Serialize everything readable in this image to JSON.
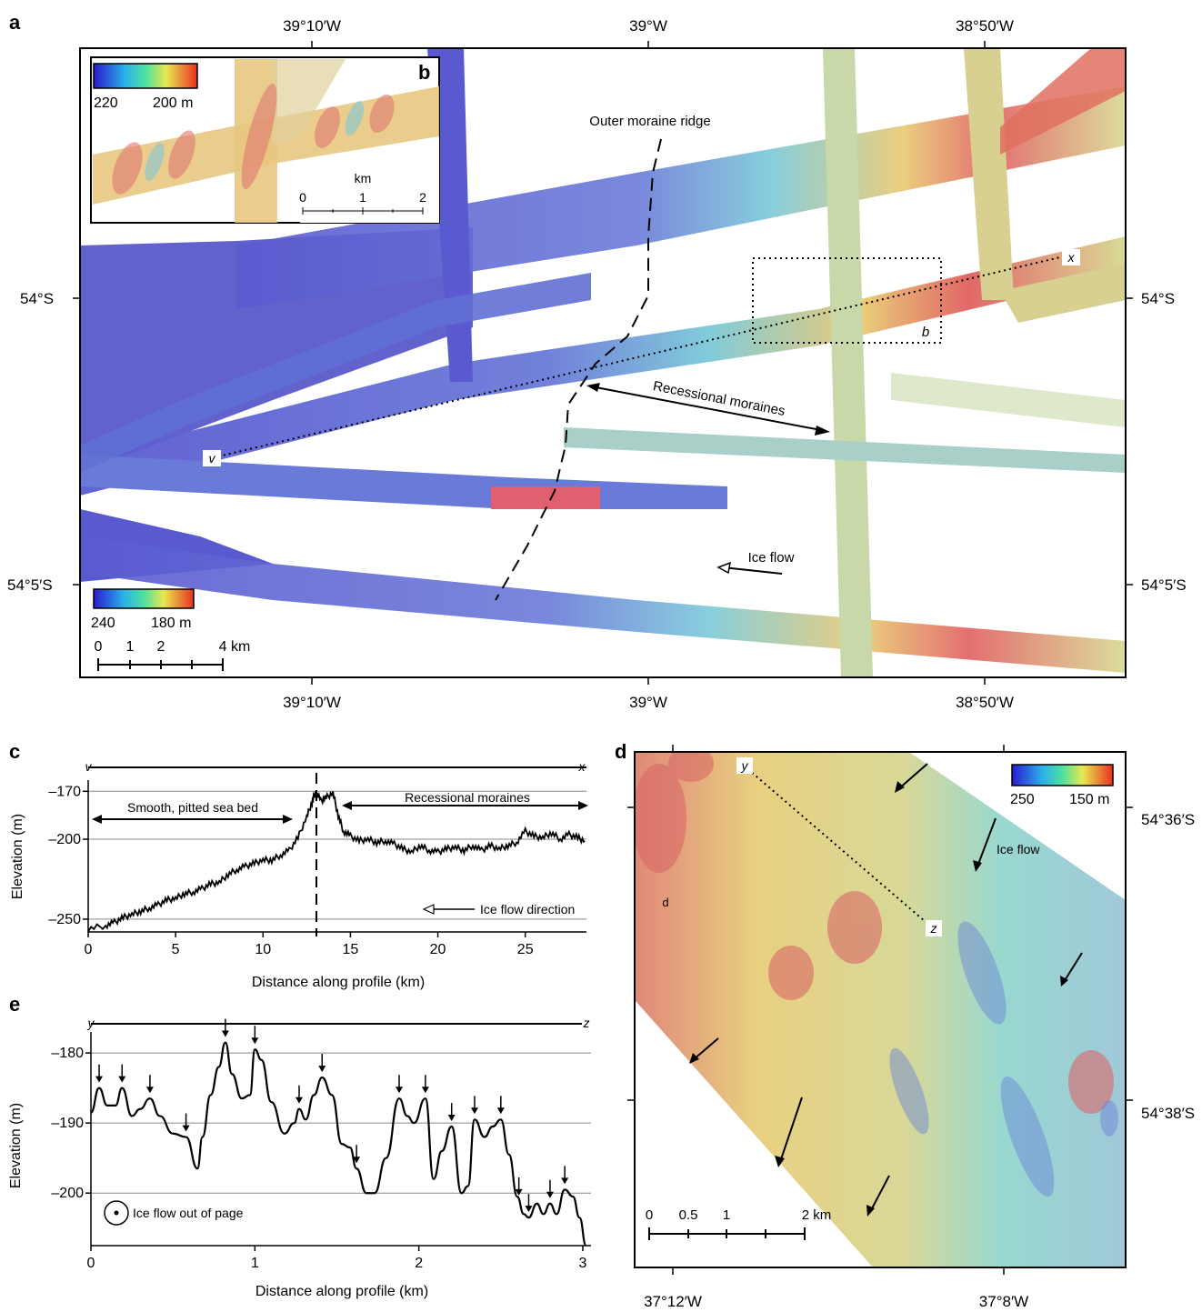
{
  "panels": {
    "a": "a",
    "b": "b",
    "c": "c",
    "d": "d",
    "e": "e"
  },
  "panel_a": {
    "lon_labels": [
      "39°10′W",
      "39°W",
      "38°50′W"
    ],
    "lat_labels": [
      "54°S",
      "54°5′S"
    ],
    "colorbar": {
      "min_label": "240",
      "max_label": "180 m",
      "colors": [
        "#1a1ac8",
        "#3cb4e6",
        "#e6e650",
        "#e63c32"
      ]
    },
    "scalebar": {
      "ticks": [
        "0",
        "1",
        "2",
        "4 km"
      ]
    },
    "annotations": {
      "outer_moraine": "Outer moraine ridge",
      "recessional": "Recessional moraines",
      "ice_flow": "Ice flow",
      "profile_start": "v",
      "profile_end": "x",
      "inset_box": "b"
    }
  },
  "panel_b": {
    "colorbar": {
      "min_label": "220",
      "max_label": "200 m"
    },
    "scalebar": {
      "unit": "km",
      "ticks": [
        "0",
        "1",
        "2"
      ]
    }
  },
  "panel_d": {
    "lon_labels": [
      "37°12′W",
      "37°8′W"
    ],
    "lat_labels": [
      "54°36′S",
      "54°38′S"
    ],
    "colorbar": {
      "min_label": "250",
      "max_label": "150 m"
    },
    "scalebar": {
      "ticks": [
        "0",
        "0.5",
        "1",
        "2 km"
      ]
    },
    "annotations": {
      "ice_flow": "Ice flow",
      "label_d": "d",
      "profile_start": "y",
      "profile_end": "z"
    }
  },
  "chart_data": [
    {
      "type": "line",
      "panel": "c",
      "xlabel": "Distance along profile (km)",
      "ylabel": "Elevation (m)",
      "xlim": [
        0,
        28.5
      ],
      "ylim": [
        -258,
        -163
      ],
      "xticks": [
        "0",
        "5",
        "10",
        "15",
        "20",
        "25"
      ],
      "yticks": [
        "-170",
        "-200",
        "-250"
      ],
      "profile_labels": {
        "start": "v",
        "end": "x"
      },
      "annotations": {
        "smooth": "Smooth, pitted sea bed",
        "recessional": "Recessional moraines",
        "ice_flow": "Ice flow direction"
      },
      "series": [
        {
          "x": [
            0,
            1,
            1.5,
            2,
            2.5,
            3,
            3.5,
            4,
            4.5,
            5,
            5.5,
            6,
            6.5,
            7,
            7.5,
            8,
            8.5,
            9,
            9.5,
            10,
            10.5,
            11,
            11.5,
            12,
            12.5,
            12.8,
            13,
            13.3,
            13.6,
            14,
            14.3,
            14.6,
            15,
            15.5,
            16,
            16.5,
            17,
            17.5,
            18,
            18.5,
            19,
            19.5,
            20,
            20.5,
            21,
            21.5,
            22,
            22.5,
            23,
            23.5,
            24,
            24.5,
            25,
            25.5,
            26,
            26.5,
            27,
            27.5,
            28,
            28.4
          ],
          "y": [
            -256,
            -254,
            -252,
            -249,
            -247,
            -245,
            -243,
            -241,
            -238,
            -237,
            -234,
            -233,
            -231,
            -228,
            -227,
            -222,
            -219,
            -217,
            -215,
            -213,
            -213,
            -210,
            -207,
            -199,
            -186,
            -177,
            -170,
            -176,
            -174,
            -171,
            -185,
            -195,
            -198,
            -201,
            -200,
            -202,
            -201,
            -203,
            -206,
            -208,
            -204,
            -207,
            -208,
            -206,
            -205,
            -207,
            -204,
            -207,
            -204,
            -206,
            -204,
            -202,
            -195,
            -198,
            -199,
            -196,
            -200,
            -197,
            -199,
            -201
          ]
        }
      ]
    },
    {
      "type": "line",
      "panel": "e",
      "xlabel": "Distance along profile (km)",
      "ylabel": "Elevation (m)",
      "xlim": [
        0,
        3.05
      ],
      "ylim": [
        -207.5,
        -177
      ],
      "xticks": [
        "0",
        "1",
        "2",
        "3"
      ],
      "yticks": [
        "-180",
        "-190",
        "-200"
      ],
      "profile_labels": {
        "start": "y",
        "end": "z"
      },
      "annotations": {
        "ice_flow": "Ice flow out of page"
      },
      "arrow_positions_km": [
        0.05,
        0.19,
        0.36,
        0.58,
        0.82,
        1.0,
        1.27,
        1.41,
        1.62,
        1.88,
        2.04,
        2.2,
        2.34,
        2.5,
        2.61,
        2.67,
        2.8,
        2.89
      ],
      "series": [
        {
          "x": [
            0,
            0.05,
            0.1,
            0.15,
            0.19,
            0.25,
            0.3,
            0.36,
            0.42,
            0.5,
            0.58,
            0.65,
            0.68,
            0.73,
            0.78,
            0.82,
            0.86,
            0.92,
            0.97,
            1.0,
            1.04,
            1.1,
            1.18,
            1.24,
            1.27,
            1.31,
            1.36,
            1.41,
            1.47,
            1.53,
            1.58,
            1.62,
            1.68,
            1.73,
            1.8,
            1.88,
            1.93,
            1.97,
            2.04,
            2.09,
            2.14,
            2.2,
            2.26,
            2.3,
            2.34,
            2.4,
            2.45,
            2.5,
            2.55,
            2.6,
            2.64,
            2.67,
            2.72,
            2.76,
            2.8,
            2.84,
            2.89,
            2.94,
            2.98,
            3.02
          ],
          "y": [
            -188.5,
            -185,
            -187.5,
            -187.5,
            -185,
            -189,
            -188,
            -186.5,
            -189,
            -191.5,
            -192,
            -196.5,
            -192,
            -186,
            -182,
            -178.5,
            -183,
            -186.5,
            -186,
            -179.5,
            -181,
            -187,
            -191.5,
            -190,
            -188,
            -189.5,
            -186,
            -183.5,
            -186,
            -193,
            -193.5,
            -196.5,
            -200,
            -200,
            -195,
            -186.5,
            -189,
            -190,
            -186.5,
            -198,
            -194,
            -190.5,
            -200,
            -199,
            -189.5,
            -192,
            -190.5,
            -189.5,
            -194.5,
            -200.5,
            -203,
            -203.5,
            -201.5,
            -203,
            -201.5,
            -203,
            -199.5,
            -200.5,
            -203.5,
            -207.5
          ]
        }
      ]
    }
  ]
}
